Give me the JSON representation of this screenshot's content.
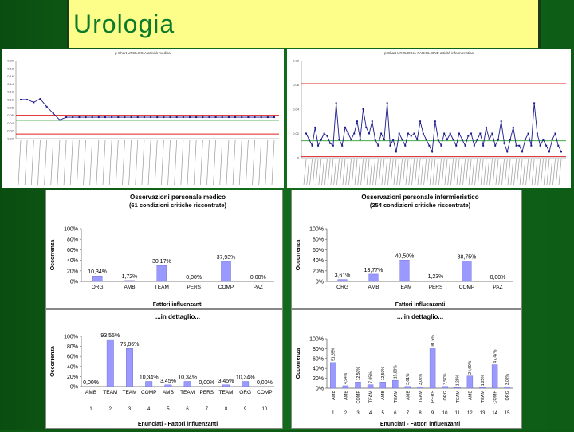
{
  "page": {
    "title": "Urologia"
  },
  "colors": {
    "bar": "#9999ff",
    "line": "#1a1a8c",
    "red": "#e02020",
    "green": "#2aa02a"
  },
  "chart_data": [
    {
      "type": "line",
      "title": "p Chart UROLOGIA attività medica",
      "ylim": [
        0,
        0.2
      ],
      "yticks": [
        "0,20",
        "0,18",
        "0,16",
        "0,14",
        "0,12",
        "0,10",
        "0,08",
        "0,06",
        "0,04",
        "0,02",
        "0,00"
      ],
      "reference_lines": {
        "ucl": 0.06,
        "center": 0.047,
        "lcl": 0.012
      },
      "values": [
        0.1,
        0.1,
        0.093,
        0.102,
        0.082,
        0.065,
        0.048,
        0.055,
        0.055,
        0.055,
        0.055,
        0.055,
        0.055,
        0.055,
        0.055,
        0.055,
        0.055,
        0.055,
        0.055,
        0.055,
        0.055,
        0.055,
        0.055,
        0.055,
        0.055,
        0.055,
        0.055,
        0.055,
        0.055,
        0.055,
        0.055,
        0.055,
        0.055,
        0.055,
        0.055,
        0.055,
        0.055,
        0.055,
        0.055,
        0.055
      ]
    },
    {
      "type": "line",
      "title": "p Chart UROLOGIA-PADIGLIONE attività infermieristica",
      "ylim": [
        0,
        0.08
      ],
      "yticks": [
        "0,08",
        "0,06",
        "0,04",
        "0,02",
        "0"
      ],
      "reference_lines": {
        "ucl": 0.061,
        "center": 0.014,
        "lcl": 0.001
      },
      "values": [
        0.02,
        0.015,
        0.01,
        0.025,
        0.01,
        0.015,
        0.02,
        0.018,
        0.012,
        0.01,
        0.045,
        0.015,
        0.01,
        0.025,
        0.02,
        0.015,
        0.02,
        0.03,
        0.015,
        0.04,
        0.025,
        0.02,
        0.03,
        0.015,
        0.01,
        0.02,
        0.015,
        0.045,
        0.01,
        0.015,
        0.005,
        0.02,
        0.015,
        0.01,
        0.02,
        0.018,
        0.02,
        0.015,
        0.03,
        0.02,
        0.015,
        0.01,
        0.005,
        0.03,
        0.015,
        0.01,
        0.02,
        0.015,
        0.02,
        0.015,
        0.01,
        0.02,
        0.015,
        0.01,
        0.018,
        0.02,
        0.01,
        0.015,
        0.02,
        0.01,
        0.025,
        0.015,
        0.02,
        0.01,
        0.015,
        0.03,
        0.012,
        0.005,
        0.015,
        0.025,
        0.01,
        0.01,
        0.005,
        0.015,
        0.02,
        0.01,
        0.045,
        0.02,
        0.01,
        0.015,
        0.01,
        0.005,
        0.015,
        0.02,
        0.01,
        0.005
      ]
    },
    {
      "type": "bar",
      "title": "Osservazioni personale medico",
      "subtitle": "(61 condizioni critiche riscontrate)",
      "ylabel": "Occorrenza",
      "xlabel": "Fattori influenzanti",
      "ylim": [
        0,
        100
      ],
      "yticks": [
        "100%",
        "80%",
        "60%",
        "40%",
        "20%",
        "0%"
      ],
      "categories": [
        "ORG",
        "AMB",
        "TEAM",
        "PERS",
        "COMP",
        "PAZ"
      ],
      "values": [
        10.34,
        1.72,
        30.17,
        0,
        37.93,
        0
      ],
      "labels": [
        "10,34%",
        "1,72%",
        "30,17%",
        "0,00%",
        "37,93%",
        "0,00%"
      ]
    },
    {
      "type": "bar",
      "title": "Osservazioni personale infermieristico",
      "subtitle": "(254 condizioni critiche riscontrate)",
      "ylabel": "Occorrenza",
      "xlabel": "Fattori influenzanti",
      "ylim": [
        0,
        100
      ],
      "yticks": [
        "100%",
        "80%",
        "60%",
        "40%",
        "20%",
        "0%"
      ],
      "categories": [
        "ORG",
        "AMB",
        "TEAM",
        "PERS",
        "COMP",
        "PAZ"
      ],
      "values": [
        3.61,
        13.77,
        40.5,
        1.23,
        38.75,
        0
      ],
      "labels": [
        "3,61%",
        "13,77%",
        "40,50%",
        "1,23%",
        "38,75%",
        "0,00%"
      ]
    },
    {
      "type": "bar",
      "title": "...in dettaglio...",
      "ylabel": "Occorrenza",
      "xlabel": "Enunciati - Fattori influenzanti",
      "ylim": [
        0,
        100
      ],
      "yticks": [
        "100%",
        "80%",
        "60%",
        "40%",
        "20%",
        "0%"
      ],
      "categories": [
        "AMB",
        "TEAM",
        "TEAM",
        "COMP",
        "AMB",
        "TEAM",
        "PERS",
        "TEAM",
        "ORG",
        "COMP"
      ],
      "numbers": [
        "1",
        "2",
        "3",
        "4",
        "5",
        "6",
        "7",
        "8",
        "9",
        "10"
      ],
      "values": [
        0,
        93.55,
        75.86,
        10.34,
        3.45,
        10.34,
        0,
        3.45,
        10.34,
        0
      ],
      "labels": [
        "0,00%",
        "93,55%",
        "75,86%",
        "10,34%",
        "3,45%",
        "10,34%",
        "0,00%",
        "3,45%",
        "10,34%",
        "0,00%"
      ]
    },
    {
      "type": "bar",
      "title": "... in dettaglio...",
      "ylabel": "Occorrenza",
      "xlabel": "Enunciati - Fattori influenzanti",
      "ylim": [
        0,
        100
      ],
      "yticks": [
        "100%",
        "80%",
        "60%",
        "40%",
        "20%",
        "0%"
      ],
      "categories": [
        "AMB",
        "AMB",
        "COMP",
        "TEAM",
        "AMB",
        "TEAM",
        "AMB",
        "TEAM",
        "PERS",
        "ORG",
        "TEAM",
        "AMB",
        "TEAM",
        "COMP",
        "ORG"
      ],
      "numbers": [
        "1",
        "2",
        "3",
        "4",
        "5",
        "6",
        "7",
        "8",
        "9",
        "10",
        "11",
        "12",
        "13",
        "14",
        "15"
      ],
      "values": [
        51.85,
        4.94,
        12.5,
        7.05,
        12.5,
        15.89,
        3.61,
        3.02,
        81.5,
        3.57,
        1.25,
        24.69,
        1.25,
        47.47,
        3.02
      ],
      "labels": [
        "51,85%",
        "4,94%",
        "12,50%",
        "7,05%",
        "12,50%",
        "15,89%",
        "3,61%",
        "3,02%",
        "81,5%",
        "3,57%",
        "1,25%",
        "24,69%",
        "1,25%",
        "47,47%",
        "3,02%"
      ]
    }
  ]
}
